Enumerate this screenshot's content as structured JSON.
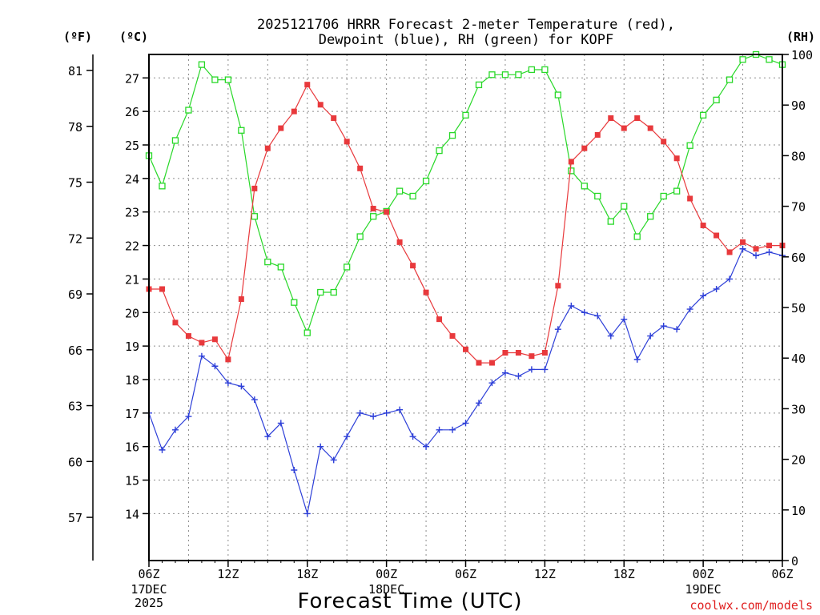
{
  "title": {
    "line1": "2025121706 HRRR Forecast 2-meter Temperature (red),",
    "line2": "Dewpoint (blue), RH (green) for KOPF"
  },
  "units": {
    "fahrenheit": "(ºF)",
    "celsius": "(ºC)",
    "rh": "(RH)"
  },
  "footer": {
    "credit": "coolwx.com/models"
  },
  "colors": {
    "temperature": "#e8393c",
    "dewpoint": "#2d3fd8",
    "rh": "#28d828",
    "frame": "#000000",
    "credit": "#e02020"
  },
  "chart_data": {
    "type": "line",
    "title": "2025121706 HRRR Forecast 2-meter Temperature (red), Dewpoint (blue), RH (green) for KOPF",
    "xlabel": "Forecast Time (UTC)",
    "x_hours": [
      0,
      1,
      2,
      3,
      4,
      5,
      6,
      7,
      8,
      9,
      10,
      11,
      12,
      13,
      14,
      15,
      16,
      17,
      18,
      19,
      20,
      21,
      22,
      23,
      24,
      25,
      26,
      27,
      28,
      29,
      30,
      31,
      32,
      33,
      34,
      35,
      36,
      37,
      38,
      39,
      40,
      41,
      42,
      43,
      44,
      45,
      46,
      47,
      48
    ],
    "x_ticks": [
      {
        "hour": 0,
        "label": "06Z",
        "sub": [
          "17DEC",
          "2025"
        ]
      },
      {
        "hour": 6,
        "label": "12Z",
        "sub": []
      },
      {
        "hour": 12,
        "label": "18Z",
        "sub": []
      },
      {
        "hour": 18,
        "label": "00Z",
        "sub": [
          "18DEC"
        ]
      },
      {
        "hour": 24,
        "label": "06Z",
        "sub": []
      },
      {
        "hour": 30,
        "label": "12Z",
        "sub": []
      },
      {
        "hour": 36,
        "label": "18Z",
        "sub": []
      },
      {
        "hour": 42,
        "label": "00Z",
        "sub": [
          "19DEC"
        ]
      },
      {
        "hour": 48,
        "label": "06Z",
        "sub": []
      }
    ],
    "xlim": [
      0,
      48
    ],
    "y_left_celsius": {
      "label": "(ºC)",
      "ylim": [
        12.6,
        27.7
      ],
      "ticks": [
        "14",
        "15",
        "16",
        "17",
        "18",
        "19",
        "20",
        "21",
        "22",
        "23",
        "24",
        "25",
        "26",
        "27"
      ]
    },
    "y_left_fahrenheit": {
      "label": "(ºF)",
      "ticks": [
        "57",
        "60",
        "63",
        "66",
        "69",
        "72",
        "75",
        "78",
        "81"
      ]
    },
    "y_right_rh": {
      "label": "(RH)",
      "ylim": [
        0,
        100
      ],
      "ticks": [
        "0",
        "10",
        "20",
        "30",
        "40",
        "50",
        "60",
        "70",
        "80",
        "90",
        "100"
      ]
    },
    "series": [
      {
        "name": "Temperature (red)",
        "axis": "celsius",
        "marker": "filled-square",
        "values": [
          20.7,
          20.7,
          19.7,
          19.3,
          19.1,
          19.2,
          18.6,
          20.4,
          23.7,
          24.9,
          25.5,
          26.0,
          26.8,
          26.2,
          25.8,
          25.1,
          24.3,
          23.1,
          23.0,
          22.1,
          21.4,
          20.6,
          19.8,
          19.3,
          18.9,
          18.5,
          18.5,
          18.8,
          18.8,
          18.7,
          18.8,
          20.8,
          24.5,
          24.9,
          25.3,
          25.8,
          25.5,
          25.8,
          25.5,
          25.1,
          24.6,
          23.4,
          22.6,
          22.3,
          21.8,
          22.1,
          21.9,
          22.0,
          22.0
        ]
      },
      {
        "name": "Dewpoint (blue)",
        "axis": "celsius",
        "marker": "plus",
        "values": [
          17.0,
          15.9,
          16.5,
          16.9,
          18.7,
          18.4,
          17.9,
          17.8,
          17.4,
          16.3,
          16.7,
          15.3,
          14.0,
          16.0,
          15.6,
          16.3,
          17.0,
          16.9,
          17.0,
          17.1,
          16.3,
          16.0,
          16.5,
          16.5,
          16.7,
          17.3,
          17.9,
          18.2,
          18.1,
          18.3,
          18.3,
          19.5,
          20.2,
          20.0,
          19.9,
          19.3,
          19.8,
          18.6,
          19.3,
          19.6,
          19.5,
          20.1,
          20.5,
          20.7,
          21.0,
          21.9,
          21.7,
          21.8,
          21.7
        ]
      },
      {
        "name": "RH (green)",
        "axis": "rh",
        "marker": "open-square",
        "values": [
          80,
          74,
          83,
          89,
          98,
          95,
          95,
          85,
          68,
          59,
          58,
          51,
          45,
          53,
          53,
          58,
          64,
          68,
          69,
          73,
          72,
          75,
          81,
          84,
          88,
          94,
          96,
          96,
          96,
          97,
          97,
          92,
          77,
          74,
          72,
          67,
          70,
          64,
          68,
          72,
          73,
          82,
          88,
          91,
          95,
          99,
          100,
          99,
          98
        ]
      }
    ],
    "legend": "none",
    "grid": true
  }
}
